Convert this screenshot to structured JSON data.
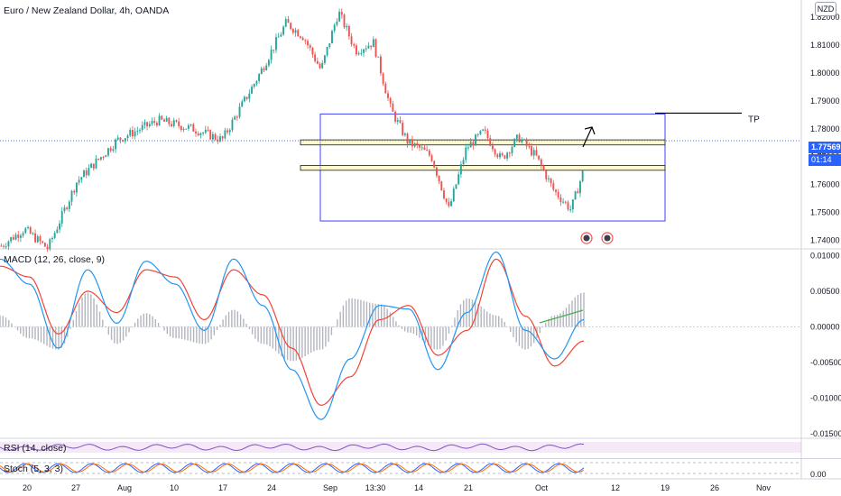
{
  "symbol_title": "Euro / New Zealand Dollar, 4h, OANDA",
  "currency": "NZD",
  "current_price": "1.77569",
  "countdown": "01:14",
  "tp_label": "TP",
  "macd_title": "MACD (12, 26, close, 9)",
  "rsi_title": "RSI (14, close)",
  "stoch_title": "Stoch (5, 3, 3)",
  "colors": {
    "up": "#26a69a",
    "down": "#ef5350",
    "macd": "#2196f3",
    "signal": "#f44336",
    "box": "#3f3fff",
    "zone": "#fff59d",
    "note": "#4caf50",
    "rsi": "#7e57c2"
  },
  "chart_data": [
    {
      "type": "candlestick",
      "title": "Euro / New Zealand Dollar, 4h, OANDA",
      "x_tick_labels": [
        "20",
        "27",
        "Aug",
        "10",
        "17",
        "24",
        "Sep",
        "13:30",
        "14",
        "21",
        "Oct",
        "12",
        "19",
        "26",
        "Nov"
      ],
      "y_tick_labels": [
        "1.82000",
        "1.81000",
        "1.80000",
        "1.79000",
        "1.78000",
        "1.77000",
        "1.76000",
        "1.75000",
        "1.74000"
      ],
      "ylim": [
        1.7372,
        1.8262
      ],
      "close_path": [
        [
          0,
          1.738
        ],
        [
          0.04,
          1.744
        ],
        [
          0.08,
          1.737
        ],
        [
          0.13,
          1.761
        ],
        [
          0.2,
          1.776
        ],
        [
          0.27,
          1.783
        ],
        [
          0.33,
          1.78
        ],
        [
          0.38,
          1.776
        ],
        [
          0.44,
          1.798
        ],
        [
          0.49,
          1.818
        ],
        [
          0.52,
          1.813
        ],
        [
          0.55,
          1.801
        ],
        [
          0.58,
          1.822
        ],
        [
          0.61,
          1.808
        ],
        [
          0.64,
          1.811
        ],
        [
          0.67,
          1.787
        ],
        [
          0.7,
          1.775
        ],
        [
          0.72,
          1.773
        ],
        [
          0.74,
          1.77
        ],
        [
          0.77,
          1.751
        ],
        [
          0.8,
          1.773
        ],
        [
          0.83,
          1.779
        ],
        [
          0.86,
          1.769
        ],
        [
          0.89,
          1.777
        ],
        [
          0.92,
          1.77
        ],
        [
          0.95,
          1.758
        ],
        [
          0.98,
          1.751
        ],
        [
          1.0,
          1.764
        ]
      ],
      "current_price": 1.77569,
      "range_box": {
        "high": 1.7853,
        "low": 1.7469
      },
      "support_zones": [
        [
          1.7742,
          1.776
        ],
        [
          1.7651,
          1.7668
        ]
      ],
      "tp_level": 1.7856,
      "annotations": [
        "TP"
      ]
    },
    {
      "type": "line",
      "title": "MACD (12, 26, close, 9)",
      "y_tick_labels": [
        "0.01000",
        "0.00500",
        "0.00000",
        "-0.00500",
        "-0.01000",
        "-0.01500"
      ],
      "ylim": [
        -0.0155,
        0.0108
      ],
      "series": [
        {
          "name": "MACD",
          "values": [
            0.0095,
            0.006,
            -0.003,
            0.008,
            0.0005,
            0.0092,
            0.006,
            -0.0005,
            0.0095,
            0.003,
            -0.006,
            -0.013,
            -0.0045,
            0.003,
            0.0025,
            -0.006,
            0.002,
            0.0105,
            -0.0005,
            -0.0045,
            0.001
          ]
        },
        {
          "name": "Signal",
          "values": [
            0.0085,
            0.007,
            -0.001,
            0.005,
            0.002,
            0.008,
            0.007,
            0.001,
            0.008,
            0.0045,
            -0.003,
            -0.011,
            -0.007,
            0.001,
            0.003,
            -0.004,
            -0.0005,
            0.0095,
            0.0015,
            -0.0055,
            -0.002
          ]
        }
      ]
    },
    {
      "type": "line",
      "title": "RSI (14, close)",
      "series": [
        {
          "name": "RSI",
          "values": []
        }
      ]
    },
    {
      "type": "line",
      "title": "Stoch (5, 3, 3)",
      "y_tick_labels": [
        "0.00"
      ],
      "series": [
        {
          "name": "%K",
          "values": []
        },
        {
          "name": "%D",
          "values": []
        }
      ]
    }
  ]
}
